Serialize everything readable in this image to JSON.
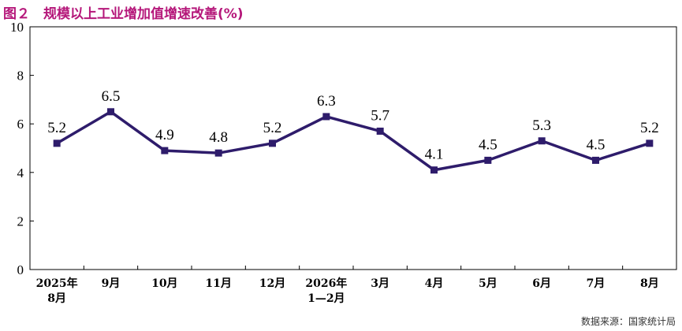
{
  "figure": {
    "title": "图２　规模以上工业增加值增速改善(%)",
    "source": "数据来源：国家统计局"
  },
  "chart_data": {
    "type": "line",
    "title": "图２　规模以上工业增加值增速改善(%)",
    "xlabel": "",
    "ylabel": "",
    "categories": [
      [
        "2025年",
        "8月"
      ],
      [
        "9月"
      ],
      [
        "10月"
      ],
      [
        "11月"
      ],
      [
        "12月"
      ],
      [
        "2026年",
        "1—2月"
      ],
      [
        "3月"
      ],
      [
        "4月"
      ],
      [
        "5月"
      ],
      [
        "6月"
      ],
      [
        "7月"
      ],
      [
        "8月"
      ]
    ],
    "series": [
      {
        "values": [
          5.2,
          6.5,
          4.9,
          4.8,
          5.2,
          6.3,
          5.7,
          4.1,
          4.5,
          5.3,
          4.5,
          5.2
        ]
      }
    ],
    "data_labels": [
      "5.2",
      "6.5",
      "4.9",
      "4.8",
      "5.2",
      "6.3",
      "5.7",
      "4.1",
      "4.5",
      "5.3",
      "4.5",
      "5.2"
    ],
    "ylim": [
      0,
      10
    ],
    "yticks": [
      0,
      2,
      4,
      6,
      8,
      10
    ],
    "grid": false,
    "legend": "none",
    "colors": {
      "line": "#2e1c6b",
      "title": "#b5177a",
      "axis": "#000000"
    }
  }
}
